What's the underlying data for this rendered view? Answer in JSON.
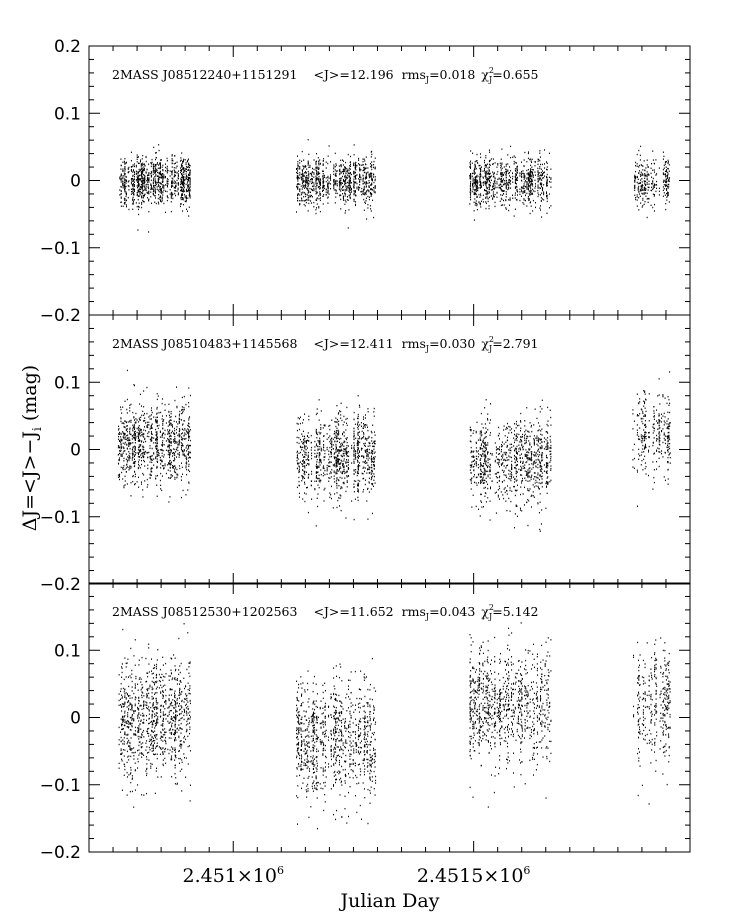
{
  "chart_data": {
    "type": "scatter",
    "xlabel": "Julian Day",
    "ylabel": "ΔJ=<J>−J_i (mag)",
    "ylabel_parts": {
      "main": "ΔJ=<J>−J",
      "sub": "i",
      "unit": "(mag)"
    },
    "xlim": [
      2450700,
      2451950
    ],
    "x_tick_labels": [
      {
        "x": 2451000,
        "mantissa": "2.451×10",
        "exp": "6"
      },
      {
        "x": 2451500,
        "mantissa": "2.4515×10",
        "exp": "6"
      }
    ],
    "observing_seasons": [
      {
        "start": 2450760,
        "end": 2450910
      },
      {
        "start": 2451130,
        "end": 2451295
      },
      {
        "start": 2451490,
        "end": 2451660
      },
      {
        "start": 2451830,
        "end": 2451910
      }
    ],
    "panels": [
      {
        "name": "2MASS J08512240+1151291",
        "info": {
          "star": "2MASS J08512240+1151291",
          "meanJ": "<J>=12.196",
          "rms_pre": "rms",
          "rms_sub": "J",
          "rms_val": "=0.018",
          "chi_pre": "χ",
          "chi_sup": "2",
          "chi_sub": "J",
          "chi_val": "=0.655"
        },
        "ylim": [
          -0.2,
          0.2
        ],
        "y_ticks": [
          -0.2,
          -0.1,
          0,
          0.1,
          0.2
        ],
        "y_tick_labels": [
          "−0.2",
          "−0.1",
          "0",
          "0.1",
          "0.2"
        ],
        "rms": 0.018,
        "season_offsets": [
          0,
          0,
          0,
          0
        ]
      },
      {
        "name": "2MASS J08510483+1145568",
        "info": {
          "star": "2MASS J08510483+1145568",
          "meanJ": "<J>=12.411",
          "rms_pre": "rms",
          "rms_sub": "J",
          "rms_val": "=0.030",
          "chi_pre": "χ",
          "chi_sup": "2",
          "chi_sub": "J",
          "chi_val": "=2.791"
        },
        "ylim": [
          -0.2,
          0.2
        ],
        "y_ticks": [
          -0.2,
          -0.1,
          0,
          0.1
        ],
        "y_tick_labels": [
          "−0.2",
          "−0.1",
          "0",
          "0.1"
        ],
        "rms": 0.03,
        "season_offsets": [
          0.01,
          -0.01,
          -0.015,
          0.025
        ]
      },
      {
        "name": "2MASS J08512530+1202563",
        "info": {
          "star": "2MASS J08512530+1202563",
          "meanJ": "<J>=11.652",
          "rms_pre": "rms",
          "rms_sub": "J",
          "rms_val": "=0.043",
          "chi_pre": "χ",
          "chi_sup": "2",
          "chi_sub": "J",
          "chi_val": "=5.142"
        },
        "ylim": [
          -0.2,
          0.2
        ],
        "y_ticks": [
          -0.2,
          -0.1,
          0,
          0.1
        ],
        "y_tick_labels": [
          "−0.2",
          "−0.1",
          "0",
          "0.1"
        ],
        "rms": 0.043,
        "season_offsets": [
          0.0,
          -0.03,
          0.02,
          0.02
        ]
      }
    ]
  }
}
